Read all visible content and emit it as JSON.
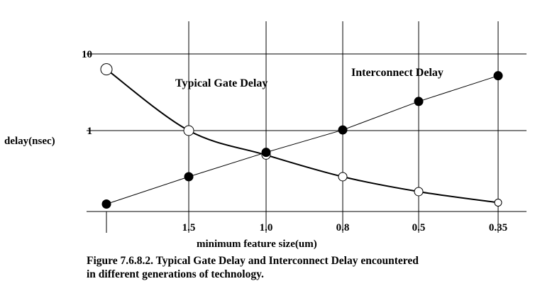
{
  "chart_data": {
    "type": "line",
    "ylabel": "delay(nsec)",
    "xlabel": "minimum feature size(um)",
    "y_scale": "log",
    "ylim": [
      0.1,
      25
    ],
    "y_ticks": [
      {
        "value": 10,
        "label": "10"
      },
      {
        "value": 1,
        "label": "1"
      }
    ],
    "categories": [
      "",
      "1.5",
      "1.0",
      "0.8",
      "0.5",
      "0.35"
    ],
    "grid": true,
    "series": [
      {
        "name": "Typical Gate Delay",
        "marker": "open-circle",
        "color": "#000000",
        "values": [
          6.3,
          1.0,
          0.48,
          0.25,
          0.16,
          0.115
        ]
      },
      {
        "name": "Interconnect Delay",
        "marker": "filled-circle",
        "color": "#000000",
        "values": [
          0.11,
          0.25,
          0.52,
          1.02,
          2.4,
          5.2
        ]
      }
    ]
  },
  "caption": {
    "line1": "Figure 7.6.8.2. Typical Gate Delay and Interconnect Delay encountered",
    "line2": "in different generations of technology."
  }
}
